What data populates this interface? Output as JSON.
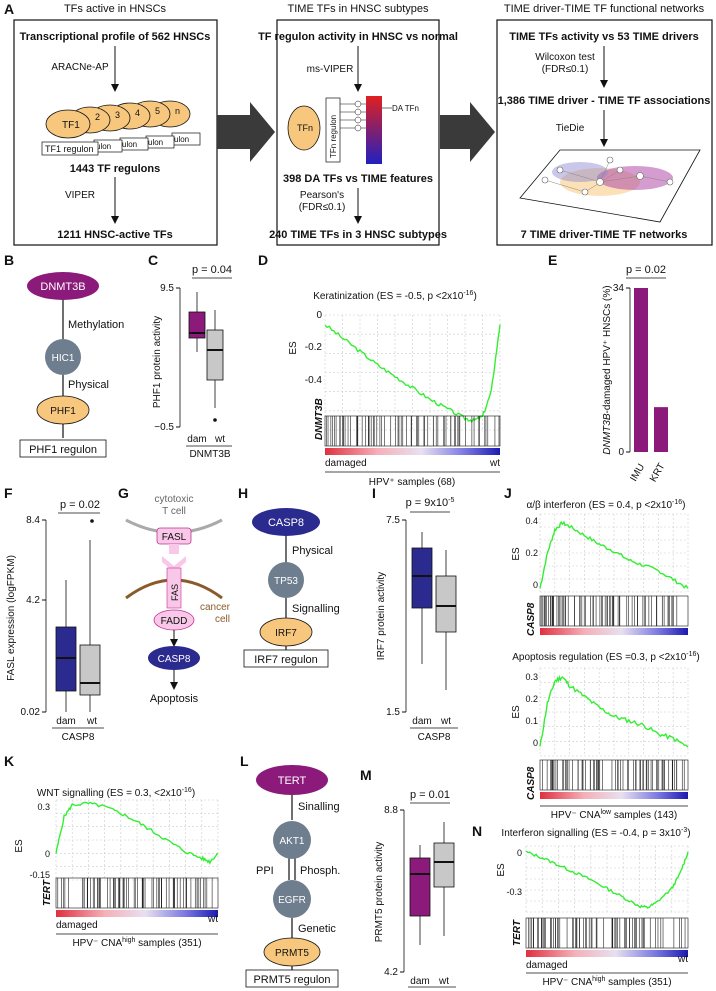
{
  "panel_a": {
    "letter": "A",
    "col1": {
      "header": "TFs active in HNSCs",
      "title": "Transcriptional profile of 562 HNSCs",
      "tool1": "ARACNe-AP",
      "tfs": [
        "TF1",
        "2",
        "3",
        "4",
        "5",
        "n"
      ],
      "regulon": "TF1 regulon",
      "ulon": "ulon",
      "result1": "1443 TF regulons",
      "tool2": "VIPER",
      "result2": "1211 HNSC-active TFs"
    },
    "col2": {
      "header": "TIME TFs in HNSC subtypes",
      "title": "TF regulon activity in HNSC vs normal",
      "tool1": "ms-VIPER",
      "tfn": "TFn",
      "regulon": "TFn regulon",
      "da": "DA TFn",
      "result1": "398 DA TFs vs TIME features",
      "tool2a": "Pearson's",
      "tool2b": "(FDR≤0.1)",
      "result2": "240 TIME TFs in 3 HNSC subtypes"
    },
    "col3": {
      "header": "TIME driver-TIME TF functional networks",
      "title": "TIME TFs activity vs 53 TIME drivers",
      "tool1a": "Wilcoxon test",
      "tool1b": "(FDR≤0.1)",
      "result1": "1,386 TIME driver - TIME TF associations",
      "tool2": "TieDie",
      "result2": "7 TIME driver-TIME TF networks"
    }
  },
  "panel_b": {
    "letter": "B",
    "top": "DNMT3B",
    "edge1": "Methylation",
    "mid": "HIC1",
    "edge2": "Physical",
    "bottom": "PHF1",
    "regulon": "PHF1 regulon"
  },
  "panel_c": {
    "letter": "C",
    "p": "p = 0.04",
    "ylabel": "PHF1 protein activity",
    "ytop": "9.5",
    "ybot": "−0.5",
    "x1": "dam",
    "x2": "wt",
    "gene": "DNMT3B"
  },
  "panel_d": {
    "letter": "D",
    "title": "Keratinization (ES = -0.5, p <2x10",
    "title_sup": "-16",
    "title_end": ")",
    "ylabel": "ES",
    "yticks": [
      "0",
      "-0.2",
      "-0.4"
    ],
    "gene": "DNMT3B",
    "left": "damaged",
    "right": "wt",
    "xlabel": "HPV⁺ samples (68)"
  },
  "panel_e": {
    "letter": "E",
    "p": "p = 0.02",
    "ytop": "34",
    "ybot": "0",
    "ylabel_gene": "DNMT3B",
    "ylabel_rest": "-damaged HPV⁺ HNSCs (%)",
    "x1": "IMU",
    "x2": "KRT"
  },
  "panel_f": {
    "letter": "F",
    "p": "p = 0.02",
    "ylabel": "FASL expression (logFPKM)",
    "yticks": [
      "8.4",
      "4.2",
      "0.02"
    ],
    "x1": "dam",
    "x2": "wt",
    "gene": "CASP8"
  },
  "panel_g": {
    "letter": "G",
    "tcell1": "cytotoxic",
    "tcell2": "T cell",
    "fasl": "FASL",
    "fas": "FAS",
    "fadd": "FADD",
    "cancer1": "cancer",
    "cancer2": "cell",
    "casp8": "CASP8",
    "apoptosis": "Apoptosis"
  },
  "panel_h": {
    "letter": "H",
    "top": "CASP8",
    "edge1": "Physical",
    "mid": "TP53",
    "edge2": "Signalling",
    "bottom": "IRF7",
    "regulon": "IRF7 regulon"
  },
  "panel_i": {
    "letter": "I",
    "p": "p = 9x10",
    "p_sup": "-5",
    "ylabel": "IRF7 protein activity",
    "ytop": "7.5",
    "ybot": "1.5",
    "x1": "dam",
    "x2": "wt",
    "gene": "CASP8"
  },
  "panel_j": {
    "letter": "J",
    "title1": "α/β interferon (ES = 0.4, p <2x10",
    "title1_sup": "-16",
    "yticks1": [
      "0.4",
      "0.2",
      "0"
    ],
    "title2": "Apoptosis regulation (ES =0.3, p <2x10",
    "title2_sup": "-16",
    "yticks2": [
      "0.3",
      "0.2",
      "0.1",
      "0"
    ],
    "ylabel": "ES",
    "gene": "CASP8",
    "xlabel": "HPV⁻ CNA",
    "xlabel_sup": "low",
    "xlabel_end": " samples (143)"
  },
  "panel_k": {
    "letter": "K",
    "title": "WNT signalling (ES = 0.3, <2x10",
    "title_sup": "-16",
    "ylabel": "ES",
    "yticks": [
      "0.3",
      "0",
      "-0.15"
    ],
    "gene": "TERT",
    "left": "damaged",
    "right": "wt",
    "xlabel": "HPV⁻ CNA",
    "xlabel_sup": "high",
    "xlabel_end": " samples (351)"
  },
  "panel_l": {
    "letter": "L",
    "top": "TERT",
    "edge1": "Sinalling",
    "n1": "AKT1",
    "ppi": "PPI",
    "phos": "Phosph.",
    "n2": "EGFR",
    "edge3": "Genetic",
    "bottom": "PRMT5",
    "regulon": "PRMT5 regulon"
  },
  "panel_m": {
    "letter": "M",
    "p": "p = 0.01",
    "ylabel": "PRMT5 protein activity",
    "ytop": "8.8",
    "ybot": "4.2",
    "x1": "dam",
    "x2": "wt",
    "gene": "TERT"
  },
  "panel_n": {
    "letter": "N",
    "title": "Interferon signalling (ES = -0.4, p = 3x10",
    "title_sup": "-3",
    "ylabel": "ES",
    "yticks": [
      "0",
      "-0.3"
    ],
    "gene": "TERT",
    "left": "damaged",
    "right": "wt",
    "xlabel": "HPV⁻ CNA",
    "xlabel_sup": "high",
    "xlabel_end": " samples (351)"
  },
  "colors": {
    "purple": "#8b1a7a",
    "navy": "#2b2a8f",
    "orange": "#f8c77e",
    "steel": "#6e7e8e",
    "green": "#33ee33",
    "gray": "#c8c8c8"
  },
  "chart_data": [
    {
      "type": "bar",
      "panel": "E",
      "categories": [
        "IMU",
        "KRT"
      ],
      "values": [
        34,
        9.3
      ],
      "ylim": [
        0,
        34
      ]
    },
    {
      "type": "line",
      "panel": "D",
      "x": [
        0,
        0.1,
        0.2,
        0.3,
        0.4,
        0.5,
        0.6,
        0.7,
        0.8,
        0.85,
        0.9,
        0.95,
        1.0
      ],
      "y": [
        0,
        -0.07,
        -0.14,
        -0.21,
        -0.27,
        -0.33,
        -0.39,
        -0.44,
        -0.49,
        -0.5,
        -0.48,
        -0.35,
        0
      ]
    },
    {
      "type": "line",
      "panel": "J1",
      "x": [
        0,
        0.05,
        0.1,
        0.15,
        0.2,
        0.3,
        0.4,
        0.5,
        0.6,
        0.7,
        0.8,
        0.9,
        1.0
      ],
      "y": [
        0,
        0.2,
        0.33,
        0.37,
        0.35,
        0.3,
        0.25,
        0.21,
        0.16,
        0.13,
        0.1,
        0.05,
        0
      ]
    },
    {
      "type": "line",
      "panel": "J2",
      "x": [
        0,
        0.05,
        0.1,
        0.15,
        0.2,
        0.3,
        0.4,
        0.5,
        0.6,
        0.7,
        0.8,
        0.9,
        1.0
      ],
      "y": [
        0,
        0.2,
        0.3,
        0.32,
        0.28,
        0.23,
        0.18,
        0.14,
        0.12,
        0.1,
        0.06,
        0.04,
        0
      ]
    },
    {
      "type": "line",
      "panel": "K",
      "x": [
        0,
        0.05,
        0.1,
        0.2,
        0.3,
        0.4,
        0.5,
        0.6,
        0.7,
        0.8,
        0.9,
        0.95,
        1.0
      ],
      "y": [
        0,
        0.22,
        0.29,
        0.3,
        0.28,
        0.24,
        0.19,
        0.13,
        0.07,
        0.01,
        -0.03,
        -0.05,
        0
      ]
    },
    {
      "type": "line",
      "panel": "N",
      "x": [
        0,
        0.1,
        0.2,
        0.3,
        0.4,
        0.5,
        0.6,
        0.7,
        0.75,
        0.8,
        0.9,
        0.95,
        1.0
      ],
      "y": [
        0,
        -0.04,
        -0.09,
        -0.14,
        -0.19,
        -0.25,
        -0.31,
        -0.37,
        -0.38,
        -0.35,
        -0.25,
        -0.15,
        0
      ]
    }
  ]
}
